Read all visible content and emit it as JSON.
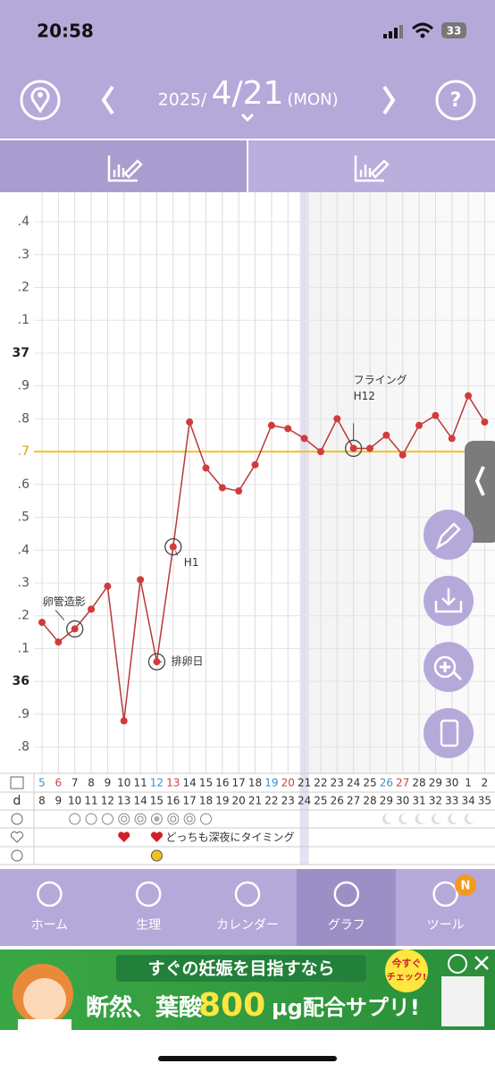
{
  "status_bar": {
    "time": "20:58",
    "battery": "33"
  },
  "header": {
    "year": "2025/",
    "date": "4/21",
    "weekday": "(MON)"
  },
  "chart_data": {
    "type": "line",
    "categories": [
      "5",
      "6",
      "7",
      "8",
      "9",
      "10",
      "11",
      "12",
      "13",
      "14",
      "15",
      "16",
      "17",
      "18",
      "19",
      "20",
      "21",
      "22",
      "23",
      "24",
      "25",
      "26",
      "27",
      "28",
      "29",
      "30",
      "1",
      "2"
    ],
    "date_colors": [
      "#3a8fd0",
      "#d04040",
      "#333333",
      "#333333",
      "#333333",
      "#333333",
      "#333333",
      "#3a8fd0",
      "#d04040",
      "#333333",
      "#333333",
      "#333333",
      "#333333",
      "#333333",
      "#3a8fd0",
      "#d04040",
      "#333333",
      "#333333",
      "#333333",
      "#333333",
      "#333333",
      "#3a8fd0",
      "#d04040",
      "#333333",
      "#333333",
      "#333333",
      "#333333",
      "#333333"
    ],
    "values": [
      36.18,
      36.12,
      36.16,
      36.22,
      36.29,
      35.88,
      36.31,
      36.06,
      36.41,
      36.79,
      36.65,
      36.59,
      36.58,
      36.66,
      36.78,
      36.77,
      36.74,
      36.7,
      36.8,
      36.71,
      36.71,
      36.75,
      36.69,
      36.78,
      36.81,
      36.74,
      36.87,
      36.79
    ],
    "color": "#b8383a",
    "threshold": 36.7,
    "threshold_color": "#f2c21c",
    "ylim": [
      35.72,
      37.49
    ],
    "yticks": [
      {
        "value": 37.4,
        "label": ".4"
      },
      {
        "value": 37.3,
        "label": ".3"
      },
      {
        "value": 37.2,
        "label": ".2"
      },
      {
        "value": 37.1,
        "label": ".1"
      },
      37,
      {
        "value": 36.9,
        "label": ".9"
      },
      {
        "value": 36.8,
        "label": ".8"
      },
      {
        "value": 36.7,
        "label": ".7"
      },
      {
        "value": 36.6,
        "label": ".6"
      },
      {
        "value": 36.5,
        "label": ".5"
      },
      {
        "value": 36.4,
        "label": ".4"
      },
      {
        "value": 36.3,
        "label": ".3"
      },
      {
        "value": 36.2,
        "label": ".2"
      },
      {
        "value": 36.1,
        "label": ".1"
      },
      36,
      {
        "value": 35.9,
        "label": ".9"
      },
      {
        "value": 35.8,
        "label": ".8"
      }
    ],
    "grid": true,
    "today": "21",
    "annotations": [
      {
        "at": "7",
        "label": "卵管造影"
      },
      {
        "at": "12",
        "label": "排卵日"
      },
      {
        "at": "13",
        "label": "H1"
      },
      {
        "at": "24",
        "label": "H12",
        "note": "フライング"
      }
    ],
    "cycle_label": "d",
    "cycle_days": [
      8,
      9,
      10,
      11,
      12,
      13,
      14,
      15,
      16,
      17,
      18,
      19,
      20,
      21,
      22,
      23,
      24,
      25,
      26,
      27,
      28,
      29,
      30,
      31,
      32,
      33,
      34,
      35
    ],
    "timing": {
      "hearts_at": [
        "10",
        "12"
      ],
      "text": "どっちも深夜にタイミング"
    }
  },
  "nav": {
    "items": [
      "ホーム",
      "生理",
      "カレンダー",
      "グラフ",
      "ツール"
    ],
    "selected": "グラフ",
    "badge": "N"
  },
  "ad": {
    "line1": "すぐの妊娠を目指すなら",
    "line2a": "断然、葉酸",
    "line2b": "800",
    "line2c": "μg配合サプリ!",
    "badge1": "今すぐ",
    "badge2": "チェック!"
  }
}
